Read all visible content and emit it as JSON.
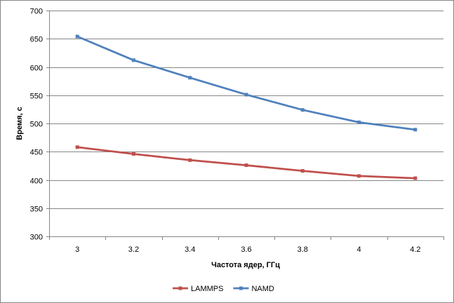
{
  "chart_data": {
    "type": "line",
    "title": "",
    "xlabel": "Частота ядер, ГГц",
    "ylabel": "Время, с",
    "categories": [
      "3",
      "3.2",
      "3.4",
      "3.6",
      "3.8",
      "4",
      "4.2"
    ],
    "ylim": [
      300,
      700
    ],
    "yticks": [
      300,
      350,
      400,
      450,
      500,
      550,
      600,
      650,
      700
    ],
    "grid": "horizontal",
    "legend_position": "bottom",
    "series": [
      {
        "name": "LAMMPS",
        "color": "#c0504d",
        "values": [
          458,
          446,
          435,
          426,
          416,
          407,
          403
        ]
      },
      {
        "name": "NAMD",
        "color": "#4f81bd",
        "values": [
          654,
          612,
          581,
          551,
          524,
          502,
          489
        ]
      }
    ]
  }
}
